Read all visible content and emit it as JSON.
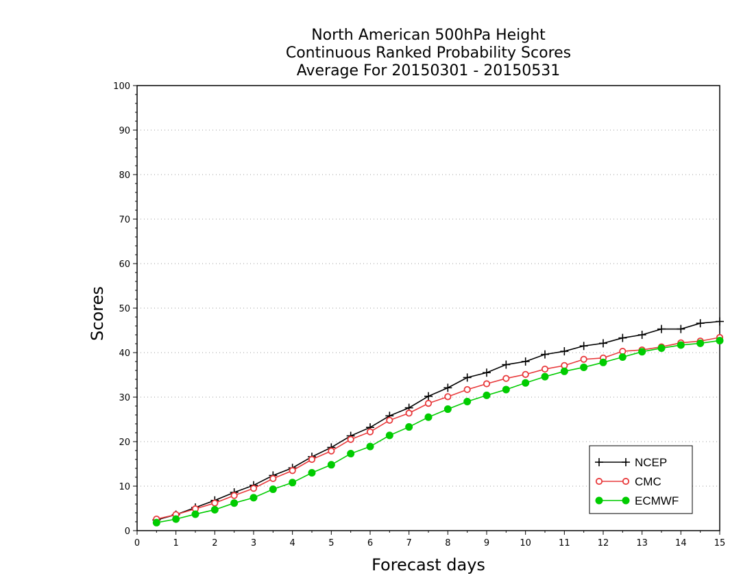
{
  "chart_data": {
    "type": "line",
    "title_lines": [
      "North American 500hPa Height",
      "Continuous Ranked Probability Scores",
      "Average For 20150301 - 20150531"
    ],
    "xlabel": "Forecast days",
    "ylabel": "Scores",
    "xlim": [
      0,
      15
    ],
    "ylim": [
      0,
      100
    ],
    "xticks": [
      "0",
      "1",
      "2",
      "3",
      "4",
      "5",
      "6",
      "7",
      "8",
      "9",
      "10",
      "11",
      "12",
      "13",
      "14",
      "15"
    ],
    "yticks": [
      "0",
      "10",
      "20",
      "30",
      "40",
      "50",
      "60",
      "70",
      "80",
      "90",
      "100"
    ],
    "grid": "horizontal dotted",
    "legend_position": "bottom-right",
    "x": [
      0.5,
      1,
      1.5,
      2,
      2.5,
      3,
      3.5,
      4,
      4.5,
      5,
      5.5,
      6,
      6.5,
      7,
      7.5,
      8,
      8.5,
      9,
      9.5,
      10,
      10.5,
      11,
      11.5,
      12,
      12.5,
      13,
      13.5,
      14,
      14.5,
      15
    ],
    "series": [
      {
        "name": "NCEP",
        "color": "#000000",
        "marker": "plus",
        "values": [
          2.4,
          3.6,
          5.2,
          6.8,
          8.6,
          10.2,
          12.4,
          14.1,
          16.6,
          18.7,
          21.3,
          23.2,
          25.8,
          27.6,
          30.2,
          32.1,
          34.4,
          35.5,
          37.3,
          38.0,
          39.6,
          40.3,
          41.5,
          42.1,
          43.3,
          44.0,
          45.3,
          45.3,
          46.6,
          47.0
        ]
      },
      {
        "name": "CMC",
        "color": "#e8383a",
        "marker": "open-circle",
        "values": [
          2.6,
          3.6,
          4.9,
          6.2,
          7.9,
          9.5,
          11.7,
          13.5,
          16.0,
          17.9,
          20.5,
          22.2,
          24.8,
          26.4,
          28.6,
          30.1,
          31.7,
          33.0,
          34.2,
          35.1,
          36.3,
          37.1,
          38.5,
          38.8,
          40.3,
          40.6,
          41.3,
          42.2,
          42.6,
          43.4
        ]
      },
      {
        "name": "ECMWF",
        "color": "#00cc00",
        "marker": "filled-circle",
        "values": [
          1.8,
          2.6,
          3.7,
          4.7,
          6.2,
          7.4,
          9.3,
          10.8,
          13.0,
          14.8,
          17.3,
          18.9,
          21.4,
          23.3,
          25.5,
          27.3,
          29.0,
          30.4,
          31.7,
          33.2,
          34.6,
          35.8,
          36.7,
          37.8,
          39.0,
          40.2,
          41.0,
          41.7,
          42.1,
          42.7
        ]
      }
    ]
  }
}
